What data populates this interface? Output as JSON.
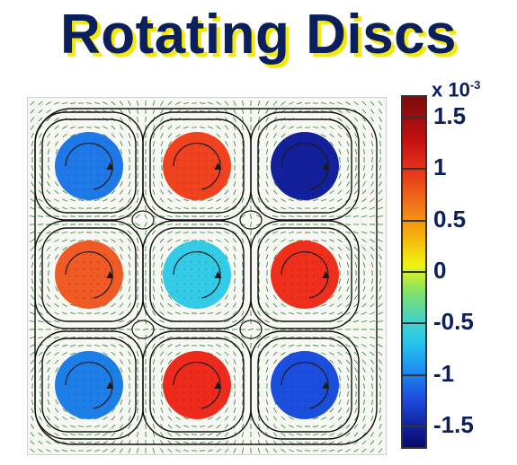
{
  "title": "Rotating Discs",
  "colorbar": {
    "multiplier_base": "x 10",
    "multiplier_exponent": "-3",
    "tick_labels": [
      "1.5",
      "1",
      "0.5",
      "0",
      "-0.5",
      "-1",
      "-1.5"
    ],
    "tick_values": [
      1.5,
      1,
      0.5,
      0,
      -0.5,
      -1,
      -1.5
    ],
    "range": [
      -1.7,
      1.7
    ]
  },
  "discs": [
    {
      "row": 1,
      "col": 1,
      "value": -1.0,
      "color": "#1e78e8"
    },
    {
      "row": 1,
      "col": 2,
      "value": 1.2,
      "color": "#f0421f"
    },
    {
      "row": 1,
      "col": 3,
      "value": -1.6,
      "color": "#12209b"
    },
    {
      "row": 2,
      "col": 1,
      "value": 0.95,
      "color": "#ef5a25"
    },
    {
      "row": 2,
      "col": 2,
      "value": -0.4,
      "color": "#33cbe8"
    },
    {
      "row": 2,
      "col": 3,
      "value": 1.25,
      "color": "#ee2f1c"
    },
    {
      "row": 3,
      "col": 1,
      "value": -1.0,
      "color": "#1e7ee8"
    },
    {
      "row": 3,
      "col": 2,
      "value": 1.3,
      "color": "#ee2a1c"
    },
    {
      "row": 3,
      "col": 3,
      "value": -1.3,
      "color": "#1b4edc"
    }
  ],
  "colors": {
    "title": "#0b1f5c",
    "title_shadow": "#f5e80b",
    "field_arrows": "#2e7d2e",
    "streamlines": "#111111"
  }
}
